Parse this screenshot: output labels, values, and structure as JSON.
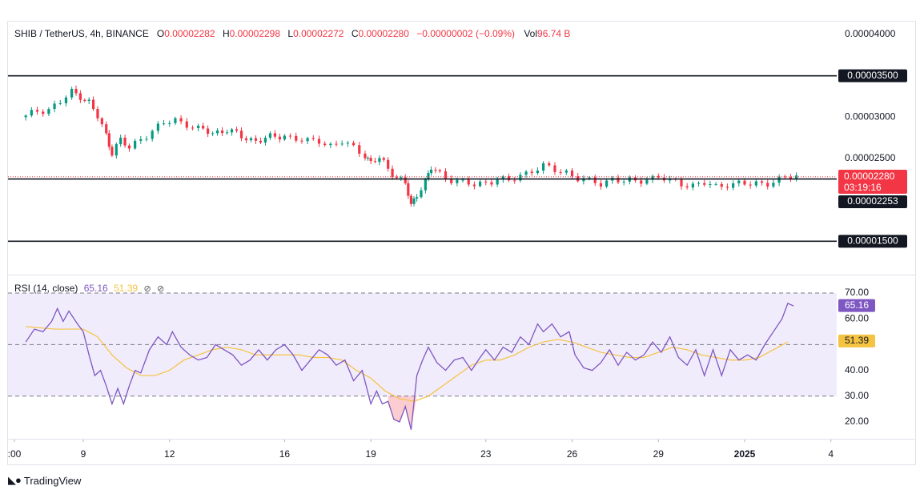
{
  "header": {
    "symbol": "SHIB / TetherUS, 4h, BINANCE",
    "o_label": "O",
    "o_value": "0.00002282",
    "h_label": "H",
    "h_value": "0.00002298",
    "l_label": "L",
    "l_value": "0.00002272",
    "c_label": "C",
    "c_value": "0.00002280",
    "change": "−0.00000002 (−0.09%)",
    "vol_label": "Vol",
    "vol_value": "96.74 B"
  },
  "rsi_legend": {
    "label": "RSI (14, close)",
    "rsi_value": "65.16",
    "ma_value": "51.39",
    "icon1": "eye-off-icon",
    "icon2": "eye-off-icon"
  },
  "brand": {
    "name": "TradingView",
    "icon": "tradingview-logo-icon"
  },
  "colors": {
    "up": "#089981",
    "down": "#f23645",
    "rsi": "#7e57c2",
    "rsi_ma": "#f5c342",
    "rsi_band": "#f1ecfb",
    "axis_text": "#131722"
  },
  "chart_data": [
    {
      "type": "candlestick",
      "title": "SHIB / TetherUS, 4h, BINANCE",
      "ylim": [
        1.22e-05,
        4.28e-05
      ],
      "y_ticks": [
        "0.00004000",
        "0.00003000",
        "0.00002500"
      ],
      "x_ticks": [
        {
          "label": ":00",
          "day": 7.0
        },
        {
          "label": "9",
          "day": 9
        },
        {
          "label": "12",
          "day": 12
        },
        {
          "label": "16",
          "day": 16
        },
        {
          "label": "19",
          "day": 19
        },
        {
          "label": "23",
          "day": 23
        },
        {
          "label": "26",
          "day": 26
        },
        {
          "label": "29",
          "day": 29
        },
        {
          "label": "2025",
          "day": 32
        },
        {
          "label": "4",
          "day": 35
        }
      ],
      "horizontal_lines": [
        {
          "value": 3.5e-05,
          "label": "0.00003500"
        },
        {
          "value": 2.253e-05,
          "label": "0.00002253"
        },
        {
          "value": 1.5e-05,
          "label": "0.00001500"
        }
      ],
      "last_price": {
        "value": 2.28e-05,
        "label": "0.00002280",
        "countdown": "03:19:16"
      },
      "close_path": [
        [
          7.0,
          3e-05
        ],
        [
          7.4,
          3.08e-05
        ],
        [
          7.8,
          3.1e-05
        ],
        [
          8.2,
          3.18e-05
        ],
        [
          8.6,
          3.3e-05
        ],
        [
          8.9,
          3.26e-05
        ],
        [
          9.2,
          3.18e-05
        ],
        [
          9.5,
          3e-05
        ],
        [
          9.8,
          2.78e-05
        ],
        [
          10.0,
          2.58e-05
        ],
        [
          10.3,
          2.72e-05
        ],
        [
          10.6,
          2.62e-05
        ],
        [
          11.0,
          2.75e-05
        ],
        [
          11.4,
          2.83e-05
        ],
        [
          11.8,
          2.92e-05
        ],
        [
          12.2,
          2.97e-05
        ],
        [
          12.6,
          2.92e-05
        ],
        [
          13.0,
          2.85e-05
        ],
        [
          13.5,
          2.81e-05
        ],
        [
          14.0,
          2.85e-05
        ],
        [
          14.5,
          2.76e-05
        ],
        [
          15.0,
          2.72e-05
        ],
        [
          15.5,
          2.75e-05
        ],
        [
          16.0,
          2.78e-05
        ],
        [
          16.4,
          2.74e-05
        ],
        [
          16.8,
          2.7e-05
        ],
        [
          17.2,
          2.72e-05
        ],
        [
          17.6,
          2.66e-05
        ],
        [
          18.0,
          2.7e-05
        ],
        [
          18.4,
          2.62e-05
        ],
        [
          18.8,
          2.55e-05
        ],
        [
          19.0,
          2.45e-05
        ],
        [
          19.3,
          2.5e-05
        ],
        [
          19.6,
          2.38e-05
        ],
        [
          19.9,
          2.28e-05
        ],
        [
          20.2,
          2.2e-05
        ],
        [
          20.4,
          1.92e-05
        ],
        [
          20.6,
          2.08e-05
        ],
        [
          20.9,
          2.22e-05
        ],
        [
          21.1,
          2.38e-05
        ],
        [
          21.4,
          2.32e-05
        ],
        [
          21.8,
          2.25e-05
        ],
        [
          22.2,
          2.2e-05
        ],
        [
          22.6,
          2.18e-05
        ],
        [
          23.0,
          2.22e-05
        ],
        [
          23.4,
          2.25e-05
        ],
        [
          23.8,
          2.22e-05
        ],
        [
          24.2,
          2.3e-05
        ],
        [
          24.6,
          2.36e-05
        ],
        [
          25.0,
          2.4e-05
        ],
        [
          25.4,
          2.36e-05
        ],
        [
          25.8,
          2.34e-05
        ],
        [
          26.2,
          2.26e-05
        ],
        [
          26.6,
          2.22e-05
        ],
        [
          27.0,
          2.2e-05
        ],
        [
          27.4,
          2.26e-05
        ],
        [
          27.8,
          2.22e-05
        ],
        [
          28.2,
          2.22e-05
        ],
        [
          28.6,
          2.26e-05
        ],
        [
          29.0,
          2.28e-05
        ],
        [
          29.4,
          2.22e-05
        ],
        [
          29.8,
          2.2e-05
        ],
        [
          30.2,
          2.18e-05
        ],
        [
          30.6,
          2.2e-05
        ],
        [
          31.0,
          2.15e-05
        ],
        [
          31.4,
          2.2e-05
        ],
        [
          31.8,
          2.2e-05
        ],
        [
          32.2,
          2.18e-05
        ],
        [
          32.6,
          2.2e-05
        ],
        [
          33.0,
          2.23e-05
        ],
        [
          33.4,
          2.26e-05
        ],
        [
          33.8,
          2.28e-05
        ]
      ]
    },
    {
      "type": "line",
      "title": "RSI (14, close)",
      "ylim": [
        14.5,
        74.5
      ],
      "y_ticks": [
        70,
        60,
        40,
        30,
        20
      ],
      "bands": {
        "upper": 70,
        "middle": 50,
        "lower": 30
      },
      "series": [
        {
          "name": "RSI",
          "values": [
            [
              7.0,
              51
            ],
            [
              7.3,
              56
            ],
            [
              7.6,
              55
            ],
            [
              7.9,
              59
            ],
            [
              8.1,
              64
            ],
            [
              8.3,
              59
            ],
            [
              8.5,
              63
            ],
            [
              8.8,
              58
            ],
            [
              9.0,
              55
            ],
            [
              9.2,
              46
            ],
            [
              9.4,
              38
            ],
            [
              9.6,
              40
            ],
            [
              9.8,
              34
            ],
            [
              10.0,
              27
            ],
            [
              10.2,
              33
            ],
            [
              10.4,
              27
            ],
            [
              10.6,
              34
            ],
            [
              10.8,
              40
            ],
            [
              11.0,
              39
            ],
            [
              11.3,
              48
            ],
            [
              11.6,
              53
            ],
            [
              11.9,
              50
            ],
            [
              12.1,
              55
            ],
            [
              12.4,
              49
            ],
            [
              12.7,
              46
            ],
            [
              13.0,
              44
            ],
            [
              13.3,
              45
            ],
            [
              13.6,
              50
            ],
            [
              13.9,
              48
            ],
            [
              14.2,
              46
            ],
            [
              14.5,
              42
            ],
            [
              14.8,
              44
            ],
            [
              15.1,
              48
            ],
            [
              15.4,
              44
            ],
            [
              15.7,
              48
            ],
            [
              16.0,
              50
            ],
            [
              16.3,
              46
            ],
            [
              16.6,
              40
            ],
            [
              16.9,
              44
            ],
            [
              17.2,
              48
            ],
            [
              17.5,
              46
            ],
            [
              17.8,
              42
            ],
            [
              18.1,
              44
            ],
            [
              18.4,
              36
            ],
            [
              18.7,
              40
            ],
            [
              19.0,
              27
            ],
            [
              19.2,
              32
            ],
            [
              19.4,
              27
            ],
            [
              19.6,
              28
            ],
            [
              19.8,
              21
            ],
            [
              20.0,
              20
            ],
            [
              20.2,
              26
            ],
            [
              20.4,
              17
            ],
            [
              20.6,
              38
            ],
            [
              20.8,
              44
            ],
            [
              21.0,
              49
            ],
            [
              21.3,
              43
            ],
            [
              21.6,
              40
            ],
            [
              21.9,
              44
            ],
            [
              22.2,
              45
            ],
            [
              22.5,
              40
            ],
            [
              22.8,
              45
            ],
            [
              23.0,
              48
            ],
            [
              23.3,
              44
            ],
            [
              23.6,
              49
            ],
            [
              23.9,
              47
            ],
            [
              24.2,
              53
            ],
            [
              24.5,
              50
            ],
            [
              24.8,
              58
            ],
            [
              25.0,
              55
            ],
            [
              25.3,
              58
            ],
            [
              25.6,
              53
            ],
            [
              25.9,
              55
            ],
            [
              26.1,
              46
            ],
            [
              26.4,
              41
            ],
            [
              26.7,
              40
            ],
            [
              27.0,
              43
            ],
            [
              27.3,
              48
            ],
            [
              27.6,
              42
            ],
            [
              27.9,
              47
            ],
            [
              28.2,
              44
            ],
            [
              28.5,
              46
            ],
            [
              28.8,
              51
            ],
            [
              29.1,
              47
            ],
            [
              29.4,
              53
            ],
            [
              29.7,
              45
            ],
            [
              30.0,
              42
            ],
            [
              30.3,
              48
            ],
            [
              30.6,
              38
            ],
            [
              30.9,
              48
            ],
            [
              31.2,
              38
            ],
            [
              31.5,
              48
            ],
            [
              31.8,
              44
            ],
            [
              32.1,
              46
            ],
            [
              32.4,
              44
            ],
            [
              32.7,
              50
            ],
            [
              33.0,
              55
            ],
            [
              33.3,
              60
            ],
            [
              33.5,
              66
            ],
            [
              33.7,
              65
            ]
          ]
        },
        {
          "name": "RSI-based MA",
          "values": [
            [
              7.0,
              57
            ],
            [
              8.0,
              56
            ],
            [
              9.0,
              56
            ],
            [
              9.5,
              53
            ],
            [
              10.0,
              46
            ],
            [
              10.5,
              41
            ],
            [
              11.0,
              38
            ],
            [
              11.5,
              38
            ],
            [
              12.0,
              40
            ],
            [
              12.5,
              44
            ],
            [
              13.0,
              46
            ],
            [
              13.5,
              48
            ],
            [
              14.0,
              49
            ],
            [
              14.5,
              48
            ],
            [
              15.0,
              46
            ],
            [
              15.5,
              46
            ],
            [
              16.0,
              46
            ],
            [
              16.5,
              46
            ],
            [
              17.0,
              45
            ],
            [
              17.5,
              45
            ],
            [
              18.0,
              44
            ],
            [
              18.5,
              40
            ],
            [
              19.0,
              37
            ],
            [
              19.5,
              32
            ],
            [
              20.0,
              29
            ],
            [
              20.5,
              28
            ],
            [
              21.0,
              30
            ],
            [
              21.5,
              34
            ],
            [
              22.0,
              38
            ],
            [
              22.5,
              42
            ],
            [
              23.0,
              44
            ],
            [
              23.5,
              44
            ],
            [
              24.0,
              46
            ],
            [
              24.5,
              49
            ],
            [
              25.0,
              51
            ],
            [
              25.5,
              52
            ],
            [
              26.0,
              51
            ],
            [
              26.5,
              49
            ],
            [
              27.0,
              47
            ],
            [
              27.5,
              46
            ],
            [
              28.0,
              45
            ],
            [
              28.5,
              45
            ],
            [
              29.0,
              47
            ],
            [
              29.5,
              49
            ],
            [
              30.0,
              48
            ],
            [
              30.5,
              46
            ],
            [
              31.0,
              45
            ],
            [
              31.5,
              44
            ],
            [
              32.0,
              44
            ],
            [
              32.5,
              45
            ],
            [
              33.0,
              48
            ],
            [
              33.5,
              51
            ]
          ]
        }
      ],
      "labels": {
        "rsi": "65.16",
        "ma": "51.39"
      }
    }
  ]
}
